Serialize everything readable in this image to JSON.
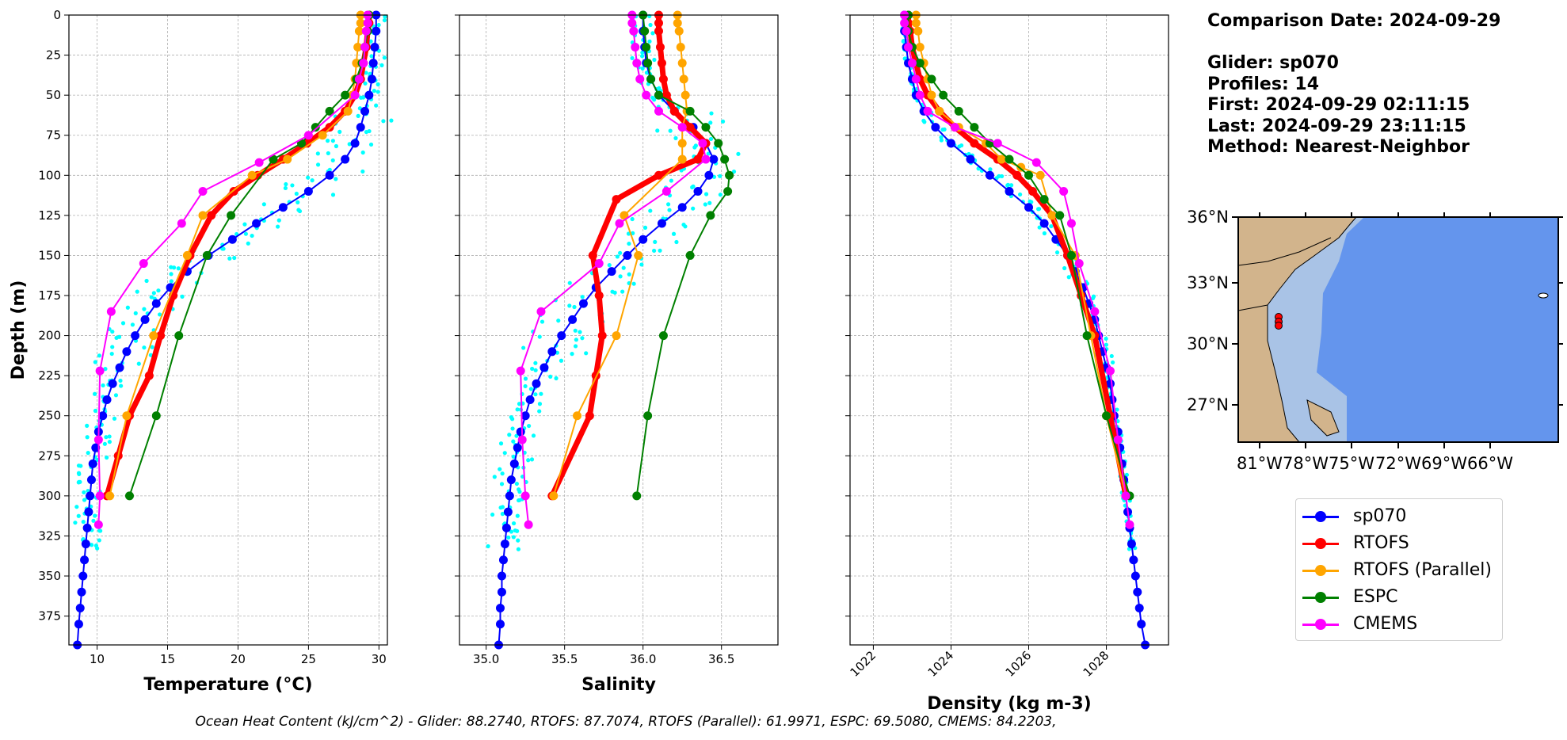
{
  "comparison": {
    "date_line": "Comparison Date: 2024-09-29",
    "glider_line": "Glider: sp070",
    "profiles_line": "Profiles: 14",
    "first_line": "First: 2024-09-29 02:11:15",
    "last_line": "Last: 2024-09-29 23:11:15",
    "method_line": "Method: Nearest-Neighbor"
  },
  "footer": "Ocean Heat Content (kJ/cm^2) - Glider: 88.2740,  RTOFS: 87.7074,  RTOFS (Parallel): 61.9971,  ESPC: 69.5080,  CMEMS: 84.2203,",
  "colors": {
    "sp070": "#0000ff",
    "RTOFS": "#ff0000",
    "RTOFS (Parallel)": "#ffa500",
    "ESPC": "#008000",
    "CMEMS": "#ff00ff",
    "glider_points": "#00ffff",
    "land": "#d2b48c",
    "shelf": "#a9c3e6",
    "ocean": "#6495ed"
  },
  "legend": [
    "sp070",
    "RTOFS",
    "RTOFS (Parallel)",
    "ESPC",
    "CMEMS"
  ],
  "map": {
    "lat_ticks": [
      "36°N",
      "33°N",
      "30°N",
      "27°N"
    ],
    "lon_ticks": [
      "81°W",
      "78°W",
      "75°W",
      "72°W",
      "69°W",
      "66°W"
    ]
  },
  "chart_data": [
    {
      "type": "line",
      "xlabel": "Temperature (°C)",
      "ylabel": "Depth (m)",
      "xlim": [
        8,
        30.6
      ],
      "ylim": [
        393,
        0
      ],
      "grid": true,
      "xticks": [
        10,
        15,
        20,
        25,
        30
      ],
      "yticks": [
        0,
        25,
        50,
        75,
        100,
        125,
        150,
        175,
        200,
        225,
        250,
        275,
        300,
        325,
        350,
        375
      ],
      "series": [
        {
          "name": "sp070",
          "x": [
            29.8,
            29.8,
            29.7,
            29.6,
            29.5,
            29.3,
            29.0,
            28.7,
            28.3,
            27.6,
            26.5,
            25.0,
            23.2,
            21.3,
            19.6,
            17.9,
            16.4,
            15.2,
            14.2,
            13.4,
            12.7,
            12.1,
            11.6,
            11.1,
            10.7,
            10.4,
            10.1,
            9.9,
            9.7,
            9.6,
            9.5,
            9.4,
            9.3,
            9.2,
            9.1,
            9.0,
            8.9,
            8.8,
            8.7,
            8.6
          ],
          "y": [
            0,
            10,
            20,
            30,
            40,
            50,
            60,
            70,
            80,
            90,
            100,
            110,
            120,
            130,
            140,
            150,
            160,
            170,
            180,
            190,
            200,
            210,
            220,
            230,
            240,
            250,
            260,
            270,
            280,
            290,
            300,
            310,
            320,
            330,
            340,
            350,
            360,
            370,
            380,
            393
          ]
        },
        {
          "name": "RTOFS",
          "x": [
            29.3,
            29.3,
            29.2,
            29.1,
            28.9,
            28.7,
            28.3,
            27.6,
            26.5,
            24.9,
            23.2,
            21.4,
            19.7,
            18.1,
            16.6,
            15.4,
            14.5,
            13.7,
            12.3,
            11.5,
            10.7
          ],
          "y": [
            0,
            5,
            10,
            20,
            30,
            40,
            50,
            60,
            70,
            80,
            90,
            100,
            110,
            125,
            150,
            175,
            200,
            225,
            250,
            275,
            300
          ]
        },
        {
          "name": "RTOFS (Parallel)",
          "x": [
            28.7,
            28.7,
            28.6,
            28.5,
            28.4,
            28.3,
            28.1,
            27.8,
            26.0,
            23.5,
            21.0,
            17.5,
            16.4,
            14.0,
            12.1,
            10.9
          ],
          "y": [
            0,
            5,
            10,
            20,
            30,
            40,
            50,
            60,
            75,
            90,
            100,
            125,
            150,
            200,
            250,
            300
          ]
        },
        {
          "name": "ESPC",
          "x": [
            29.3,
            29.2,
            29.0,
            28.8,
            28.4,
            27.6,
            26.5,
            25.5,
            24.5,
            22.5,
            19.5,
            17.8,
            15.8,
            14.2,
            12.3
          ],
          "y": [
            0,
            10,
            20,
            30,
            40,
            50,
            60,
            70,
            80,
            90,
            125,
            150,
            200,
            250,
            300
          ]
        },
        {
          "name": "CMEMS",
          "x": [
            29.2,
            29.2,
            29.1,
            29.0,
            28.9,
            28.6,
            28.3,
            25.0,
            21.5,
            17.5,
            16.0,
            13.3,
            11.0,
            10.2,
            10.1,
            10.2,
            10.1
          ],
          "y": [
            0,
            5,
            10,
            20,
            30,
            40,
            50,
            75,
            92,
            110,
            130,
            155,
            185,
            222,
            265,
            300,
            318
          ]
        }
      ]
    },
    {
      "type": "line",
      "xlabel": "Salinity",
      "ylabel": "",
      "xlim": [
        34.83,
        36.86
      ],
      "ylim": [
        393,
        0
      ],
      "grid": true,
      "xticks": [
        35.0,
        35.5,
        36.0,
        36.5
      ],
      "series": [
        {
          "name": "sp070",
          "x": [
            36.0,
            36.0,
            36.01,
            36.02,
            36.05,
            36.1,
            36.2,
            36.32,
            36.4,
            36.45,
            36.42,
            36.35,
            36.25,
            36.12,
            36.0,
            35.9,
            35.8,
            35.7,
            35.62,
            35.55,
            35.48,
            35.42,
            35.37,
            35.32,
            35.28,
            35.25,
            35.22,
            35.2,
            35.18,
            35.16,
            35.15,
            35.14,
            35.13,
            35.12,
            35.11,
            35.1,
            35.1,
            35.09,
            35.09,
            35.08
          ],
          "y": [
            0,
            10,
            20,
            30,
            40,
            50,
            60,
            70,
            80,
            90,
            100,
            110,
            120,
            130,
            140,
            150,
            160,
            170,
            180,
            190,
            200,
            210,
            220,
            230,
            240,
            250,
            260,
            270,
            280,
            290,
            300,
            310,
            320,
            330,
            340,
            350,
            360,
            370,
            380,
            393
          ]
        },
        {
          "name": "RTOFS",
          "x": [
            36.1,
            36.1,
            36.1,
            36.11,
            36.12,
            36.13,
            36.15,
            36.2,
            36.3,
            36.4,
            36.35,
            36.1,
            35.83,
            35.68,
            35.72,
            35.74,
            35.7,
            35.66,
            35.42
          ],
          "y": [
            0,
            5,
            10,
            20,
            30,
            40,
            50,
            60,
            70,
            80,
            90,
            100,
            115,
            150,
            175,
            200,
            225,
            250,
            300
          ]
        },
        {
          "name": "RTOFS (Parallel)",
          "x": [
            36.22,
            36.22,
            36.23,
            36.24,
            36.25,
            36.26,
            36.27,
            36.28,
            36.25,
            36.25,
            36.25,
            35.88,
            35.97,
            35.83,
            35.58,
            35.43
          ],
          "y": [
            0,
            5,
            10,
            20,
            30,
            40,
            50,
            60,
            70,
            80,
            90,
            125,
            150,
            200,
            250,
            300
          ]
        },
        {
          "name": "ESPC",
          "x": [
            36.0,
            36.01,
            36.02,
            36.03,
            36.05,
            36.1,
            36.3,
            36.4,
            36.48,
            36.52,
            36.55,
            36.54,
            36.43,
            36.3,
            36.13,
            36.03,
            35.96
          ],
          "y": [
            0,
            10,
            20,
            30,
            40,
            50,
            60,
            70,
            80,
            90,
            100,
            110,
            125,
            150,
            200,
            250,
            300
          ]
        },
        {
          "name": "CMEMS",
          "x": [
            35.93,
            35.93,
            35.94,
            35.95,
            35.96,
            35.98,
            36.02,
            36.1,
            36.25,
            36.38,
            36.4,
            36.15,
            35.85,
            35.72,
            35.35,
            35.22,
            35.23,
            35.25,
            35.27
          ],
          "y": [
            0,
            5,
            10,
            20,
            30,
            40,
            50,
            60,
            70,
            80,
            90,
            110,
            130,
            155,
            185,
            222,
            265,
            300,
            318
          ]
        }
      ]
    },
    {
      "type": "line",
      "xlabel": "Density (kg m-3)",
      "ylabel": "",
      "xlim": [
        1021.4,
        1029.6
      ],
      "ylim": [
        393,
        0
      ],
      "grid": true,
      "xticks": [
        1022,
        1024,
        1026,
        1028
      ],
      "series": [
        {
          "name": "sp070",
          "x": [
            1022.8,
            1022.8,
            1022.85,
            1022.9,
            1023.0,
            1023.1,
            1023.3,
            1023.6,
            1024.0,
            1024.5,
            1025.0,
            1025.5,
            1026.0,
            1026.4,
            1026.7,
            1027.0,
            1027.2,
            1027.4,
            1027.55,
            1027.7,
            1027.8,
            1027.9,
            1028.0,
            1028.1,
            1028.15,
            1028.2,
            1028.3,
            1028.35,
            1028.4,
            1028.45,
            1028.5,
            1028.55,
            1028.6,
            1028.65,
            1028.7,
            1028.75,
            1028.8,
            1028.85,
            1028.9,
            1029.0
          ],
          "y": [
            0,
            10,
            20,
            30,
            40,
            50,
            60,
            70,
            80,
            90,
            100,
            110,
            120,
            130,
            140,
            150,
            160,
            170,
            180,
            190,
            200,
            210,
            220,
            230,
            240,
            250,
            260,
            270,
            280,
            290,
            300,
            310,
            320,
            330,
            340,
            350,
            360,
            370,
            380,
            393
          ]
        },
        {
          "name": "RTOFS",
          "x": [
            1022.9,
            1022.9,
            1022.95,
            1023.0,
            1023.1,
            1023.2,
            1023.4,
            1023.7,
            1024.1,
            1024.6,
            1025.2,
            1025.7,
            1026.1,
            1026.6,
            1027.0,
            1027.35,
            1027.7,
            1028.1,
            1028.5
          ],
          "y": [
            0,
            5,
            10,
            20,
            30,
            40,
            50,
            60,
            70,
            80,
            90,
            100,
            110,
            125,
            150,
            175,
            200,
            250,
            300
          ]
        },
        {
          "name": "RTOFS (Parallel)",
          "x": [
            1023.1,
            1023.1,
            1023.15,
            1023.2,
            1023.3,
            1023.4,
            1023.5,
            1023.7,
            1024.2,
            1024.9,
            1025.3,
            1025.8,
            1026.3,
            1026.6,
            1027.2,
            1027.6,
            1028.0,
            1028.5
          ],
          "y": [
            0,
            5,
            10,
            20,
            30,
            40,
            50,
            60,
            70,
            80,
            90,
            95,
            100,
            125,
            150,
            200,
            250,
            300
          ]
        },
        {
          "name": "ESPC",
          "x": [
            1022.9,
            1022.9,
            1023.0,
            1023.2,
            1023.5,
            1023.8,
            1024.2,
            1024.6,
            1025.0,
            1025.5,
            1026.0,
            1026.4,
            1026.8,
            1027.1,
            1027.5,
            1028.0,
            1028.6
          ],
          "y": [
            0,
            10,
            20,
            30,
            40,
            50,
            60,
            70,
            80,
            90,
            100,
            115,
            125,
            150,
            200,
            250,
            300
          ]
        },
        {
          "name": "CMEMS",
          "x": [
            1022.8,
            1022.8,
            1022.85,
            1022.9,
            1023.0,
            1023.1,
            1023.2,
            1023.4,
            1024.1,
            1025.2,
            1026.2,
            1026.9,
            1027.1,
            1027.3,
            1027.7,
            1028.1,
            1028.3,
            1028.5,
            1028.6
          ],
          "y": [
            0,
            5,
            10,
            20,
            30,
            40,
            50,
            60,
            70,
            80,
            92,
            110,
            130,
            155,
            185,
            222,
            265,
            300,
            318
          ]
        }
      ]
    }
  ]
}
